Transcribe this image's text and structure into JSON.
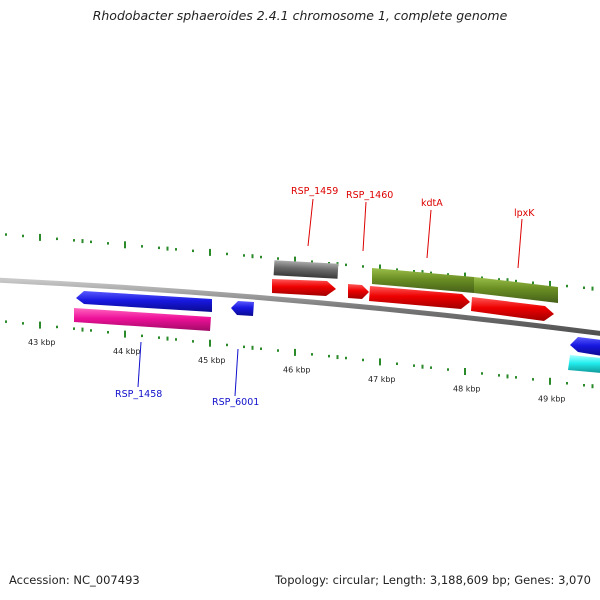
{
  "title": "Rhodobacter sphaeroides 2.4.1 chromosome 1, complete genome",
  "footer": {
    "accession": "Accession: NC_007493",
    "summary": "Topology: circular; Length: 3,188,609 bp; Genes: 3,070"
  },
  "ruler": {
    "unit": "kbp",
    "ticks": [
      {
        "kb": 43,
        "label": "43 kbp"
      },
      {
        "kb": 44,
        "label": "44 kbp"
      },
      {
        "kb": 45,
        "label": "45 kbp"
      },
      {
        "kb": 46,
        "label": "46 kbp"
      },
      {
        "kb": 47,
        "label": "47 kbp"
      },
      {
        "kb": 48,
        "label": "48 kbp"
      },
      {
        "kb": 49,
        "label": "49 kbp"
      }
    ]
  },
  "colors": {
    "backbone": "#8a8a8a",
    "tick_green": "#2a8a2a",
    "forward_label": "#dd0000",
    "reverse_label": "#1010cc",
    "cds_red": "#ee0000",
    "gene_blue": "#1818e0",
    "gene_magenta": "#ee1199",
    "gene_gray": "#6a6a6a",
    "gene_olive": "#6b8e23",
    "gene_cyan": "#22eeee"
  },
  "genes": [
    {
      "name": "RSP_1458",
      "strand": "reverse",
      "color": "gene_magenta",
      "start_kb": 43.35,
      "end_kb": 44.85
    },
    {
      "name": "RSP_6001",
      "strand": "reverse",
      "color": "gene_blue",
      "start_kb": 45.05,
      "end_kb": 45.3
    },
    {
      "name": "RSP_1459",
      "strand": "forward",
      "color": "gene_gray",
      "start_kb": 45.75,
      "end_kb": 46.5
    },
    {
      "name": "RSP_1460",
      "strand": "forward",
      "color": "cds_red",
      "start_kb": 46.55,
      "end_kb": 46.8
    },
    {
      "name": "kdtA",
      "strand": "forward",
      "color": "gene_olive",
      "start_kb": 46.85,
      "end_kb": 48.0
    },
    {
      "name": "lpxK",
      "strand": "forward",
      "color": "gene_olive",
      "start_kb": 48.0,
      "end_kb": 48.95
    }
  ],
  "labels": {
    "RSP_1458": "RSP_1458",
    "RSP_6001": "RSP_6001",
    "RSP_1459": "RSP_1459",
    "RSP_1460": "RSP_1460",
    "kdtA": "kdtA",
    "lpxK": "lpxK"
  }
}
